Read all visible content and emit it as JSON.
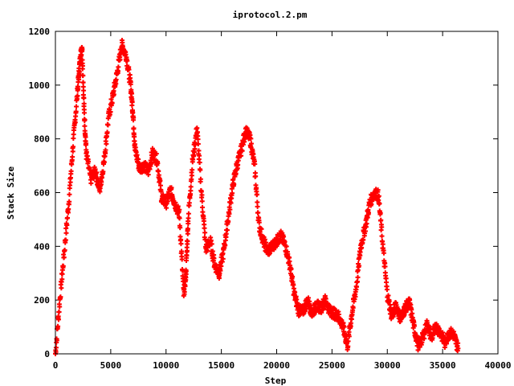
{
  "chart_data": {
    "type": "scatter",
    "title": "iprotocol.2.pm",
    "xlabel": "Step",
    "ylabel": "Stack Size",
    "xlim": [
      0,
      40000
    ],
    "ylim": [
      0,
      1200
    ],
    "xticks": [
      0,
      5000,
      10000,
      15000,
      20000,
      25000,
      30000,
      35000,
      40000
    ],
    "yticks": [
      0,
      200,
      400,
      600,
      800,
      1000,
      1200
    ],
    "xtick_labels": [
      "0",
      "5000",
      "10000",
      "15000",
      "20000",
      "25000",
      "30000",
      "35000",
      "40000"
    ],
    "ytick_labels": [
      "0",
      "200",
      "400",
      "600",
      "800",
      "1000",
      "1200"
    ],
    "grid": false,
    "legend": "none",
    "marker": "+",
    "series": [
      {
        "color": "#ff0000",
        "x": [
          0,
          400,
          800,
          1200,
          1600,
          2000,
          2200,
          2400,
          2600,
          2800,
          3200,
          3600,
          4000,
          4400,
          4800,
          5200,
          5600,
          6000,
          6400,
          6800,
          7000,
          7200,
          7600,
          8000,
          8400,
          8800,
          9200,
          9600,
          10000,
          10400,
          10800,
          11200,
          11600,
          11800,
          12000,
          12400,
          12800,
          13200,
          13600,
          14000,
          14400,
          14800,
          15200,
          15600,
          16000,
          16400,
          16800,
          17200,
          17600,
          18000,
          18400,
          18800,
          19200,
          19600,
          20000,
          20400,
          20800,
          21200,
          21600,
          22000,
          22400,
          22800,
          23200,
          23600,
          24000,
          24400,
          24800,
          25200,
          25600,
          26000,
          26400,
          26800,
          27200,
          27600,
          28000,
          28400,
          28800,
          29200,
          29600,
          30000,
          30400,
          30800,
          31200,
          31600,
          32000,
          32400,
          32800,
          33200,
          33600,
          34000,
          34400,
          34800,
          35200,
          35600,
          36000,
          36400
        ],
        "y": [
          0,
          200,
          380,
          560,
          780,
          980,
          1080,
          1150,
          900,
          740,
          650,
          680,
          610,
          720,
          880,
          960,
          1050,
          1150,
          1110,
          1000,
          900,
          760,
          690,
          700,
          680,
          750,
          720,
          580,
          560,
          610,
          560,
          520,
          220,
          300,
          500,
          720,
          840,
          600,
          390,
          420,
          330,
          300,
          380,
          500,
          620,
          700,
          760,
          830,
          800,
          700,
          480,
          420,
          380,
          400,
          420,
          440,
          400,
          330,
          220,
          160,
          160,
          200,
          150,
          180,
          170,
          200,
          160,
          150,
          140,
          100,
          30,
          150,
          250,
          400,
          470,
          560,
          600,
          590,
          400,
          220,
          140,
          180,
          130,
          170,
          190,
          100,
          30,
          60,
          110,
          60,
          100,
          80,
          40,
          80,
          70,
          20
        ]
      }
    ]
  }
}
